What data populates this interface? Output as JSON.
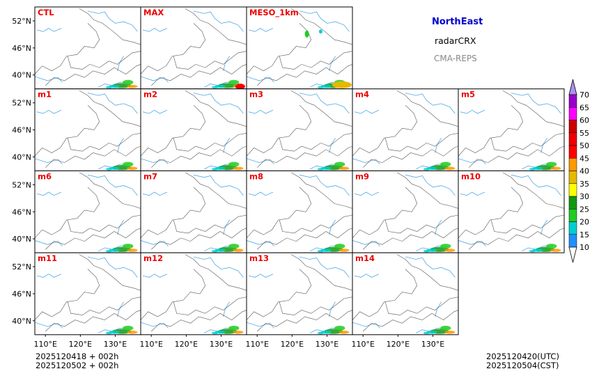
{
  "header": {
    "region": "NorthEast",
    "product": "radarCRX",
    "source": "CMA-REPS"
  },
  "panels": [
    [
      "CTL",
      "MAX",
      "MESO_1km"
    ],
    [
      "m1",
      "m2",
      "m3",
      "m4",
      "m5"
    ],
    [
      "m6",
      "m7",
      "m8",
      "m9",
      "m10"
    ],
    [
      "m11",
      "m12",
      "m13",
      "m14"
    ]
  ],
  "axes": {
    "lat_labels": [
      "52°N",
      "46°N",
      "40°N"
    ],
    "lon_labels": [
      "110°E",
      "120°E",
      "130°E"
    ]
  },
  "colorbar": {
    "levels": [
      "10",
      "15",
      "20",
      "25",
      "30",
      "35",
      "40",
      "45",
      "50",
      "55",
      "60",
      "65",
      "70"
    ],
    "colors": [
      "#1e90ff",
      "#00ced1",
      "#22cc22",
      "#119911",
      "#ffff00",
      "#e6b800",
      "#ff9900",
      "#ff0000",
      "#ee0000",
      "#cc0000",
      "#ff00ff",
      "#9900cc",
      "#ad90ee"
    ]
  },
  "footer": {
    "init_utc": "2025120418  +  002h",
    "init_cst": "2025120502  +  002h",
    "valid_utc": "2025120420(UTC)",
    "valid_cst": "2025120504(CST)"
  },
  "map_colors": {
    "border": "#555555",
    "river": "#4fa8e6",
    "label": "#ee0000"
  }
}
